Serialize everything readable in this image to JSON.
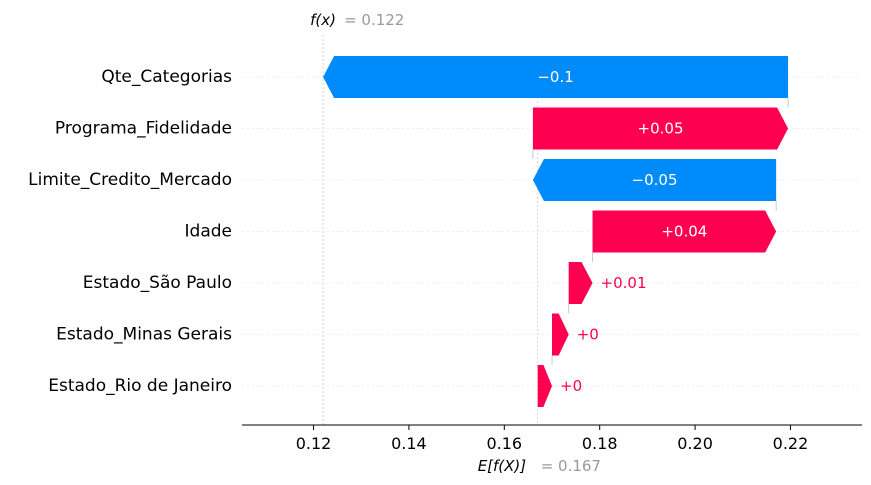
{
  "chart_data": {
    "type": "waterfall",
    "base_value": 0.167,
    "output_value": 0.122,
    "base_label": "E[f(X)]",
    "base_value_text": "= 0.167",
    "output_label": "f(x)",
    "output_value_text": "= 0.122",
    "xlim": [
      0.105,
      0.235
    ],
    "x_ticks": [
      0.12,
      0.14,
      0.16,
      0.18,
      0.2,
      0.22
    ],
    "x_tick_labels": [
      "0.12",
      "0.14",
      "0.16",
      "0.18",
      "0.20",
      "0.22"
    ],
    "features": [
      {
        "name": "Qte_Categorias",
        "start": 0.2195,
        "end": 0.122,
        "label": "−0.1"
      },
      {
        "name": "Programa_Fidelidade",
        "start": 0.166,
        "end": 0.2195,
        "label": "+0.05"
      },
      {
        "name": "Limite_Credito_Mercado",
        "start": 0.217,
        "end": 0.166,
        "label": "−0.05"
      },
      {
        "name": "Idade",
        "start": 0.1785,
        "end": 0.217,
        "label": "+0.04"
      },
      {
        "name": "Estado_São Paulo",
        "start": 0.1735,
        "end": 0.1785,
        "label": "+0.01"
      },
      {
        "name": "Estado_Minas Gerais",
        "start": 0.17,
        "end": 0.1735,
        "label": "+0"
      },
      {
        "name": "Estado_Rio de Janeiro",
        "start": 0.167,
        "end": 0.17,
        "label": "+0"
      }
    ],
    "colors": {
      "positive": "#ff0051",
      "negative": "#008bfb",
      "grid": "#cccccc",
      "annotation": "#999999"
    }
  }
}
